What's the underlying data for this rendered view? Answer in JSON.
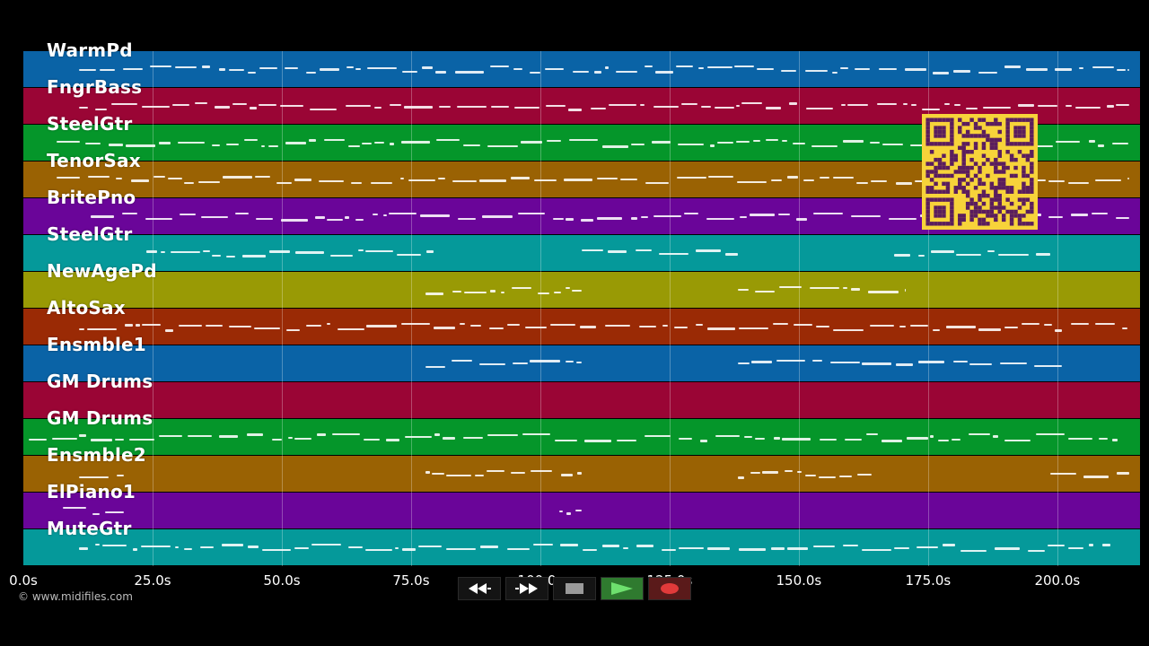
{
  "tracks": [
    {
      "label": "WarmPd",
      "color": "#0a63a6"
    },
    {
      "label": "FngrBass",
      "color": "#9a0535"
    },
    {
      "label": "SteelGtr",
      "color": "#05962a"
    },
    {
      "label": "TenorSax",
      "color": "#9a6203"
    },
    {
      "label": "BritePno",
      "color": "#6a0599"
    },
    {
      "label": "SteelGtr",
      "color": "#05999a"
    },
    {
      "label": "NewAgePd",
      "color": "#999a05"
    },
    {
      "label": "AltoSax",
      "color": "#9a2a05"
    },
    {
      "label": "Ensmble1",
      "color": "#0a63a6"
    },
    {
      "label": "GM Drums",
      "color": "#9a0535"
    },
    {
      "label": "GM Drums",
      "color": "#05962a"
    },
    {
      "label": "Ensmble2",
      "color": "#9a6203"
    },
    {
      "label": "ElPiano1",
      "color": "#6a0599"
    },
    {
      "label": "MuteGtr",
      "color": "#05999a"
    }
  ],
  "timeline": {
    "max_seconds": 216,
    "ticks": [
      "0.0s",
      "25.0s",
      "50.0s",
      "75.0s",
      "100.0s",
      "125.0s",
      "150.0s",
      "175.0s",
      "200.0s"
    ]
  },
  "copyright": "© www.midifiles.com",
  "transport": {
    "rewind_icon": "rewind-icon",
    "forward_icon": "fast-forward-icon",
    "stop_icon": "stop-icon",
    "play_icon": "play-icon",
    "record_icon": "record-icon"
  },
  "colors": {
    "background": "#000000",
    "qr": "#f7d33a",
    "qr_dark": "#5a1d5e"
  }
}
